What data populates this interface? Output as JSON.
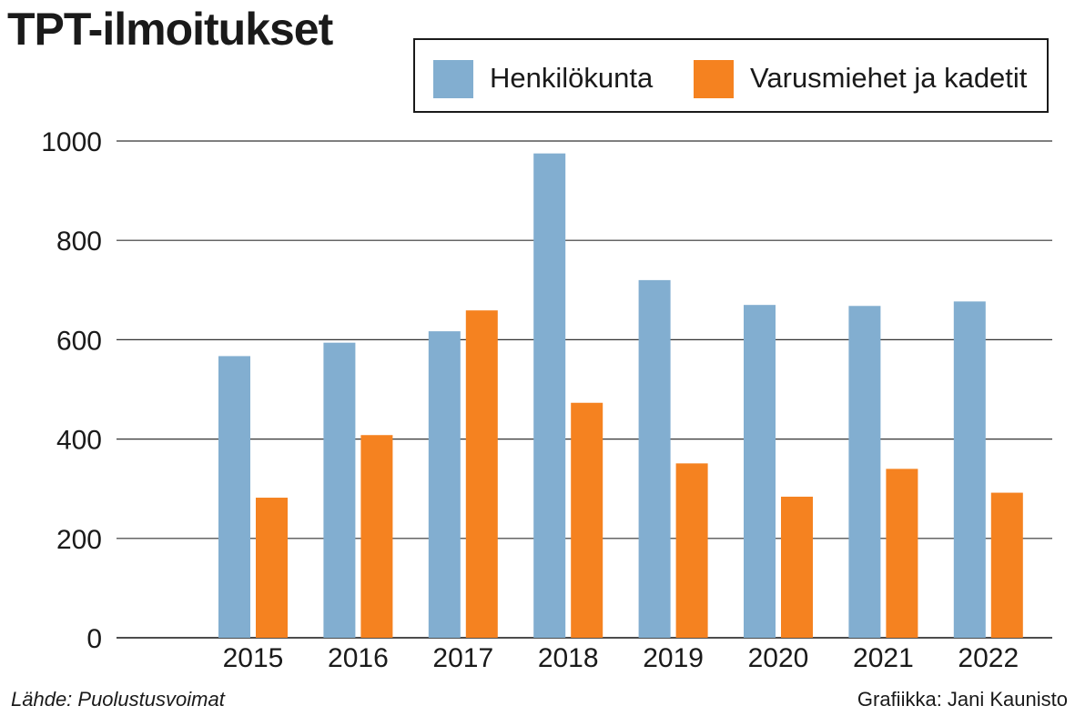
{
  "title": "TPT-ilmoitukset",
  "legend": {
    "items": [
      {
        "label": "Henkilökunta",
        "color": "#82aed0"
      },
      {
        "label": "Varusmiehet ja kadetit",
        "color": "#f58220"
      }
    ]
  },
  "source": "Lähde: Puolustusvoimat",
  "credit": "Grafiikka: Jani Kaunisto",
  "chart_data": {
    "type": "bar",
    "title": "TPT-ilmoitukset",
    "categories": [
      "2015",
      "2016",
      "2017",
      "2018",
      "2019",
      "2020",
      "2021",
      "2022"
    ],
    "series": [
      {
        "name": "Henkilökunta",
        "color": "#82aed0",
        "values": [
          567,
          594,
          617,
          975,
          720,
          670,
          668,
          677
        ]
      },
      {
        "name": "Varusmiehet ja kadetit",
        "color": "#f58220",
        "values": [
          282,
          408,
          659,
          473,
          351,
          284,
          340,
          292
        ]
      }
    ],
    "ylim": [
      0,
      1000
    ],
    "yticks": [
      0,
      200,
      400,
      600,
      800,
      1000
    ],
    "grid": true,
    "legend_position": "top-right"
  }
}
